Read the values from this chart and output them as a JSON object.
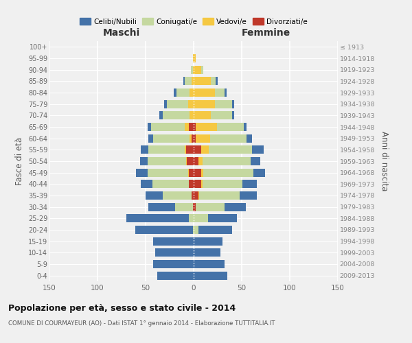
{
  "age_groups": [
    "0-4",
    "5-9",
    "10-14",
    "15-19",
    "20-24",
    "25-29",
    "30-34",
    "35-39",
    "40-44",
    "45-49",
    "50-54",
    "55-59",
    "60-64",
    "65-69",
    "70-74",
    "75-79",
    "80-84",
    "85-89",
    "90-94",
    "95-99",
    "100+"
  ],
  "birth_years": [
    "2009-2013",
    "2004-2008",
    "1999-2003",
    "1994-1998",
    "1989-1993",
    "1984-1988",
    "1979-1983",
    "1974-1978",
    "1969-1973",
    "1964-1968",
    "1959-1963",
    "1954-1958",
    "1949-1953",
    "1944-1948",
    "1939-1943",
    "1934-1938",
    "1929-1933",
    "1924-1928",
    "1919-1923",
    "1914-1918",
    "≤ 1913"
  ],
  "maschi": {
    "celibi": [
      38,
      42,
      40,
      42,
      60,
      65,
      28,
      18,
      12,
      12,
      8,
      8,
      5,
      4,
      4,
      3,
      3,
      2,
      0,
      0,
      0
    ],
    "coniugati": [
      0,
      0,
      0,
      0,
      1,
      5,
      18,
      30,
      38,
      42,
      40,
      38,
      38,
      35,
      28,
      22,
      14,
      7,
      2,
      0,
      0
    ],
    "vedovi": [
      0,
      0,
      0,
      0,
      0,
      0,
      0,
      0,
      0,
      1,
      1,
      1,
      2,
      4,
      4,
      6,
      4,
      2,
      1,
      1,
      0
    ],
    "divorziati": [
      0,
      0,
      0,
      0,
      0,
      0,
      1,
      2,
      5,
      5,
      7,
      8,
      2,
      5,
      0,
      0,
      0,
      0,
      0,
      0,
      0
    ]
  },
  "femmine": {
    "nubili": [
      35,
      32,
      28,
      30,
      35,
      30,
      22,
      18,
      15,
      12,
      10,
      12,
      6,
      3,
      2,
      2,
      2,
      2,
      0,
      0,
      0
    ],
    "coniugate": [
      0,
      0,
      0,
      0,
      5,
      15,
      30,
      42,
      42,
      52,
      50,
      45,
      38,
      28,
      22,
      18,
      10,
      5,
      2,
      0,
      0
    ],
    "vedove": [
      0,
      0,
      0,
      0,
      0,
      0,
      0,
      1,
      1,
      2,
      4,
      8,
      15,
      22,
      18,
      22,
      22,
      18,
      8,
      2,
      0
    ],
    "divorziate": [
      0,
      0,
      0,
      0,
      0,
      0,
      2,
      5,
      8,
      8,
      5,
      8,
      2,
      2,
      0,
      0,
      0,
      0,
      0,
      0,
      0
    ]
  },
  "colors": {
    "celibi": "#4472a8",
    "coniugati": "#c5d8a0",
    "vedovi": "#f5c842",
    "divorziati": "#c0392b"
  },
  "xlim": 150,
  "title": "Popolazione per età, sesso e stato civile - 2014",
  "subtitle": "COMUNE DI COURMAYEUR (AO) - Dati ISTAT 1° gennaio 2014 - Elaborazione TUTTITALIA.IT",
  "ylabel_left": "Fasce di età",
  "ylabel_right": "Anni di nascita",
  "xlabel_maschi": "Maschi",
  "xlabel_femmine": "Femmine",
  "legend_labels": [
    "Celibi/Nubili",
    "Coniugati/e",
    "Vedovi/e",
    "Divorziati/e"
  ],
  "bg_color": "#f0f0f0",
  "bar_color": "#e8e8e8"
}
